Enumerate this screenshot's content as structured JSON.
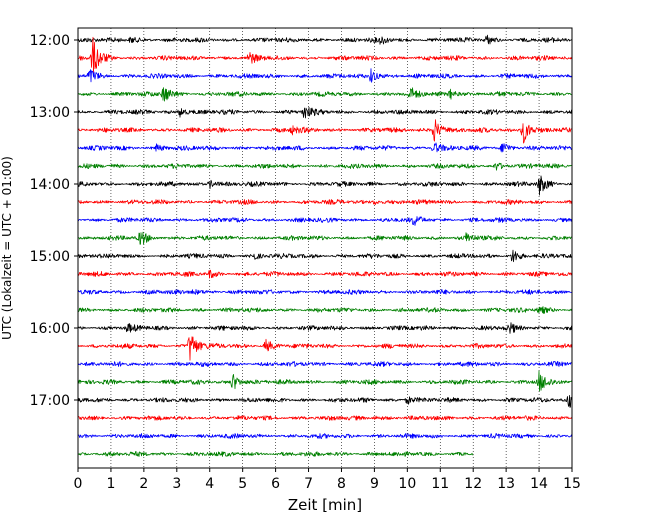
{
  "chart_data": {
    "type": "line",
    "title": "",
    "xlabel": "Zeit  [min]",
    "ylabel": "UTC (Lokalzeit = UTC + 01:00)",
    "xlim": [
      0,
      15
    ],
    "x_ticks": [
      "0",
      "1",
      "2",
      "3",
      "4",
      "5",
      "6",
      "7",
      "8",
      "9",
      "10",
      "11",
      "12",
      "13",
      "14",
      "15"
    ],
    "y_ticks": [
      "12:00",
      "13:00",
      "14:00",
      "15:00",
      "16:00",
      "17:00"
    ],
    "trace_interval_min": 15,
    "trace_count": 24,
    "last_trace_end_min": 12,
    "series_colors": [
      "#000000",
      "#ff0000",
      "#0000ff",
      "#008000"
    ],
    "grid": "vertical-dotted",
    "events": [
      {
        "trace": 0,
        "t": 1.6,
        "amp": 0.4
      },
      {
        "trace": 0,
        "t": 9.2,
        "amp": 0.4
      },
      {
        "trace": 0,
        "t": 12.4,
        "amp": 0.5
      },
      {
        "trace": 1,
        "t": 0.45,
        "amp": 2.2
      },
      {
        "trace": 1,
        "t": 5.2,
        "amp": 0.6
      },
      {
        "trace": 2,
        "t": 0.35,
        "amp": 0.8
      },
      {
        "trace": 2,
        "t": 8.9,
        "amp": 0.8
      },
      {
        "trace": 3,
        "t": 2.6,
        "amp": 1.0
      },
      {
        "trace": 3,
        "t": 10.1,
        "amp": 0.6
      },
      {
        "trace": 3,
        "t": 11.3,
        "amp": 0.6
      },
      {
        "trace": 4,
        "t": 3.1,
        "amp": 0.6
      },
      {
        "trace": 4,
        "t": 6.85,
        "amp": 0.8
      },
      {
        "trace": 5,
        "t": 6.5,
        "amp": 0.4
      },
      {
        "trace": 5,
        "t": 10.8,
        "amp": 1.5
      },
      {
        "trace": 5,
        "t": 13.5,
        "amp": 1.7
      },
      {
        "trace": 6,
        "t": 2.4,
        "amp": 0.4
      },
      {
        "trace": 6,
        "t": 10.8,
        "amp": 0.7
      },
      {
        "trace": 6,
        "t": 12.9,
        "amp": 0.7
      },
      {
        "trace": 7,
        "t": 12.7,
        "amp": 0.4
      },
      {
        "trace": 8,
        "t": 4.0,
        "amp": 0.5
      },
      {
        "trace": 8,
        "t": 14.0,
        "amp": 1.1
      },
      {
        "trace": 9,
        "t": 9.0,
        "amp": 0.3
      },
      {
        "trace": 10,
        "t": 10.2,
        "amp": 0.5
      },
      {
        "trace": 11,
        "t": 1.9,
        "amp": 0.8
      },
      {
        "trace": 11,
        "t": 11.8,
        "amp": 0.5
      },
      {
        "trace": 12,
        "t": 5.3,
        "amp": 0.4
      },
      {
        "trace": 12,
        "t": 13.2,
        "amp": 0.8
      },
      {
        "trace": 13,
        "t": 4.0,
        "amp": 0.4
      },
      {
        "trace": 14,
        "t": 3.5,
        "amp": 0.3
      },
      {
        "trace": 15,
        "t": 14.0,
        "amp": 0.5
      },
      {
        "trace": 16,
        "t": 1.5,
        "amp": 0.4
      },
      {
        "trace": 16,
        "t": 13.1,
        "amp": 0.5
      },
      {
        "trace": 17,
        "t": 3.4,
        "amp": 1.8
      },
      {
        "trace": 17,
        "t": 5.7,
        "amp": 0.7
      },
      {
        "trace": 19,
        "t": 4.7,
        "amp": 1.0
      },
      {
        "trace": 19,
        "t": 14.0,
        "amp": 1.1
      },
      {
        "trace": 20,
        "t": 10.0,
        "amp": 0.5
      },
      {
        "trace": 20,
        "t": 14.9,
        "amp": 0.9
      },
      {
        "trace": 21,
        "t": 9.0,
        "amp": 0.2
      }
    ]
  }
}
